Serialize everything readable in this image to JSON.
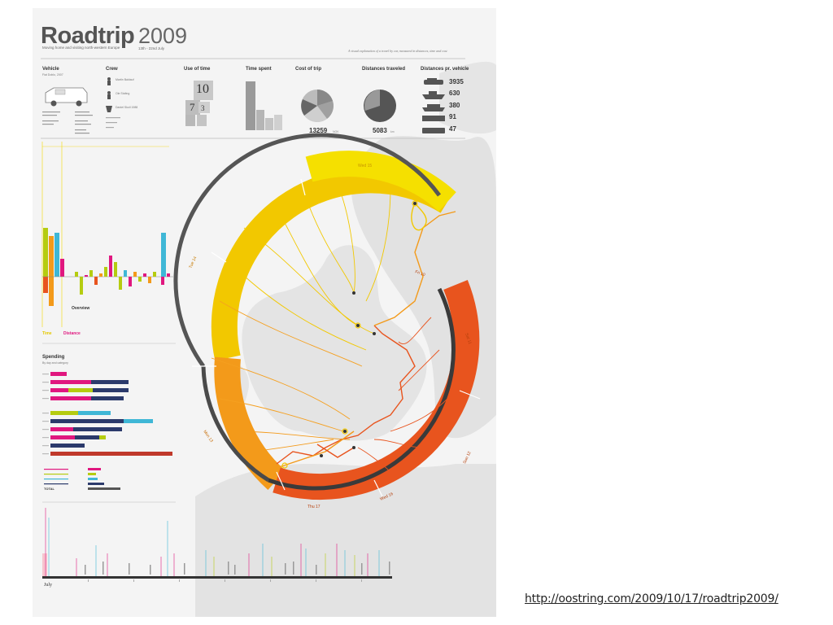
{
  "poster": {
    "title_main": "Roadtrip",
    "title_year": "2009",
    "subtitle": "Moving home and visiting north-western Europe",
    "date_range": "13th - 22nd July",
    "tagline": "A visual explanation of a travel by car, measured in distances, time and cost"
  },
  "header_sections": {
    "vehicle": {
      "title": "Vehicle",
      "model": "Fiat Doblo, 2007"
    },
    "crew": {
      "title": "Crew",
      "members": [
        "Martin Baldauf",
        "Ole Stoltng",
        "Daniel Skoll 1988"
      ]
    },
    "use_of_time": {
      "title": "Use of time",
      "values": [
        "10",
        "7",
        "3"
      ]
    },
    "time_spent": {
      "title": "Time spent"
    },
    "cost_of_trip": {
      "title": "Cost of trip",
      "value": "13259",
      "unit": "NOK"
    },
    "distances_traveled": {
      "title": "Distances traveled",
      "value": "5083",
      "unit": "km"
    },
    "distances_per_vehicle": {
      "title": "Distances pr. vehicle",
      "values": [
        "3935",
        "630",
        "380",
        "91",
        "47"
      ],
      "unit": "km"
    }
  },
  "left_panel": {
    "legend_time": "Time",
    "legend_distance": "Distance",
    "overview_label": "Overview",
    "spending_title": "Spending",
    "spending_subtitle": "By day and category",
    "total_label": "TOTAL"
  },
  "timeline": {
    "month_label": "July"
  },
  "circle_labels": {
    "wed15": "Wed 15",
    "tue14": "Tue 14",
    "mon13": "Mon 13",
    "sun12": "Sun 12",
    "sat11": "Sat 11",
    "fri10": "Fri 10",
    "thu17": "Thu 17",
    "wed16": "Wed 16"
  },
  "colors": {
    "yellow": "#f2d900",
    "orange": "#f39a1a",
    "red_orange": "#e8541e",
    "magenta": "#e0177f",
    "cyan": "#3fb7d6",
    "lime": "#b5cc10",
    "navy": "#2b3a6b",
    "dark": "#444444"
  },
  "footer": {
    "source_url": "http://oostring.com/2009/10/17/roadtrip2009/"
  }
}
